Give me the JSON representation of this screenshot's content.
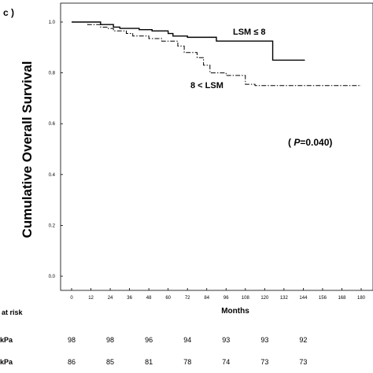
{
  "panel_label": "c )",
  "chart_data": {
    "type": "line",
    "ylabel": "Cumulative Overall Survival",
    "xlabel": "Months",
    "xlim": [
      0,
      180
    ],
    "ylim": [
      0,
      1.0
    ],
    "x_ticks": [
      0,
      12,
      24,
      36,
      48,
      60,
      72,
      84,
      96,
      108,
      120,
      132,
      144,
      156,
      168,
      180
    ],
    "y_ticks": [
      0.0,
      0.2,
      0.4,
      0.6,
      0.8,
      1.0
    ],
    "grid": false,
    "annotation_p": "(P=0.040)",
    "series": [
      {
        "name": "LSM ≤ 8",
        "style": "solid",
        "x": [
          0,
          18,
          26,
          30,
          42,
          50,
          60,
          63,
          72,
          90,
          100,
          125,
          145
        ],
        "y": [
          1.0,
          0.99,
          0.98,
          0.975,
          0.97,
          0.965,
          0.955,
          0.945,
          0.94,
          0.925,
          0.925,
          0.85,
          0.85
        ]
      },
      {
        "name": "8 < LSM",
        "style": "dashdot",
        "x": [
          0,
          10,
          18,
          22,
          26,
          34,
          38,
          48,
          56,
          66,
          70,
          78,
          82,
          86,
          96,
          108,
          114,
          180
        ],
        "y": [
          1.0,
          0.99,
          0.98,
          0.975,
          0.965,
          0.955,
          0.945,
          0.935,
          0.925,
          0.905,
          0.88,
          0.86,
          0.83,
          0.8,
          0.79,
          0.755,
          0.75,
          0.75
        ]
      }
    ]
  },
  "risk_table": {
    "title": "at risk",
    "rows": [
      {
        "label": "kPa",
        "values": [
          "98",
          "98",
          "96",
          "94",
          "93",
          "93",
          "92"
        ]
      },
      {
        "label": "kPa",
        "values": [
          "86",
          "85",
          "81",
          "78",
          "74",
          "73",
          "73"
        ]
      }
    ]
  }
}
